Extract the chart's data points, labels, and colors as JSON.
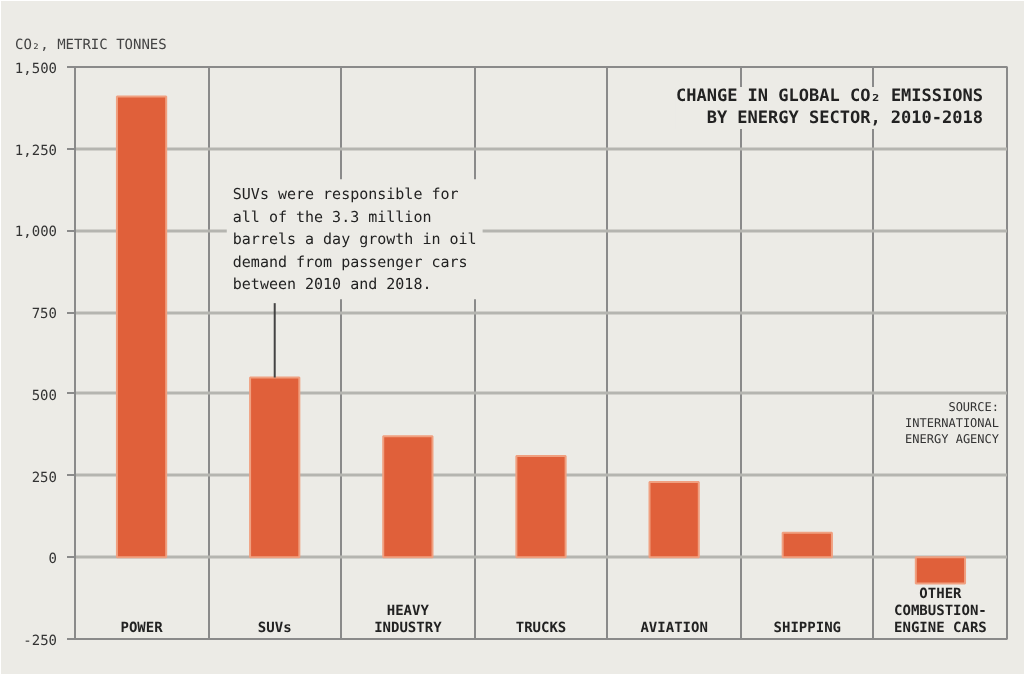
{
  "chart_data": {
    "type": "bar",
    "title": "CHANGE IN GLOBAL CO₂ EMISSIONS BY ENERGY SECTOR, 2010-2018",
    "ylabel": "CO₂, METRIC TONNES",
    "categories": [
      "POWER",
      "SUVs",
      "HEAVY INDUSTRY",
      "TRUCKS",
      "AVIATION",
      "SHIPPING",
      "OTHER COMBUSTION-ENGINE CARS"
    ],
    "values": [
      1410,
      550,
      370,
      310,
      230,
      75,
      -80
    ],
    "color": "#e0603a",
    "ylim": [
      -250,
      1500
    ],
    "yticks": [
      {
        "value": -250,
        "label": "-250"
      },
      0,
      250,
      500,
      750,
      {
        "value": 1000,
        "label": "1,000"
      },
      {
        "value": 1250,
        "label": "1,250"
      },
      {
        "value": 1500,
        "label": "1,500"
      }
    ],
    "grid": true,
    "annotations": [
      {
        "text": "SUVs were responsible for all of the 3.3 million barrels a day growth in oil demand from passenger cars between 2010 and 2018.",
        "x": "SUVs",
        "y": 550
      },
      "SOURCE: INTERNATIONAL ENERGY AGENCY"
    ]
  }
}
